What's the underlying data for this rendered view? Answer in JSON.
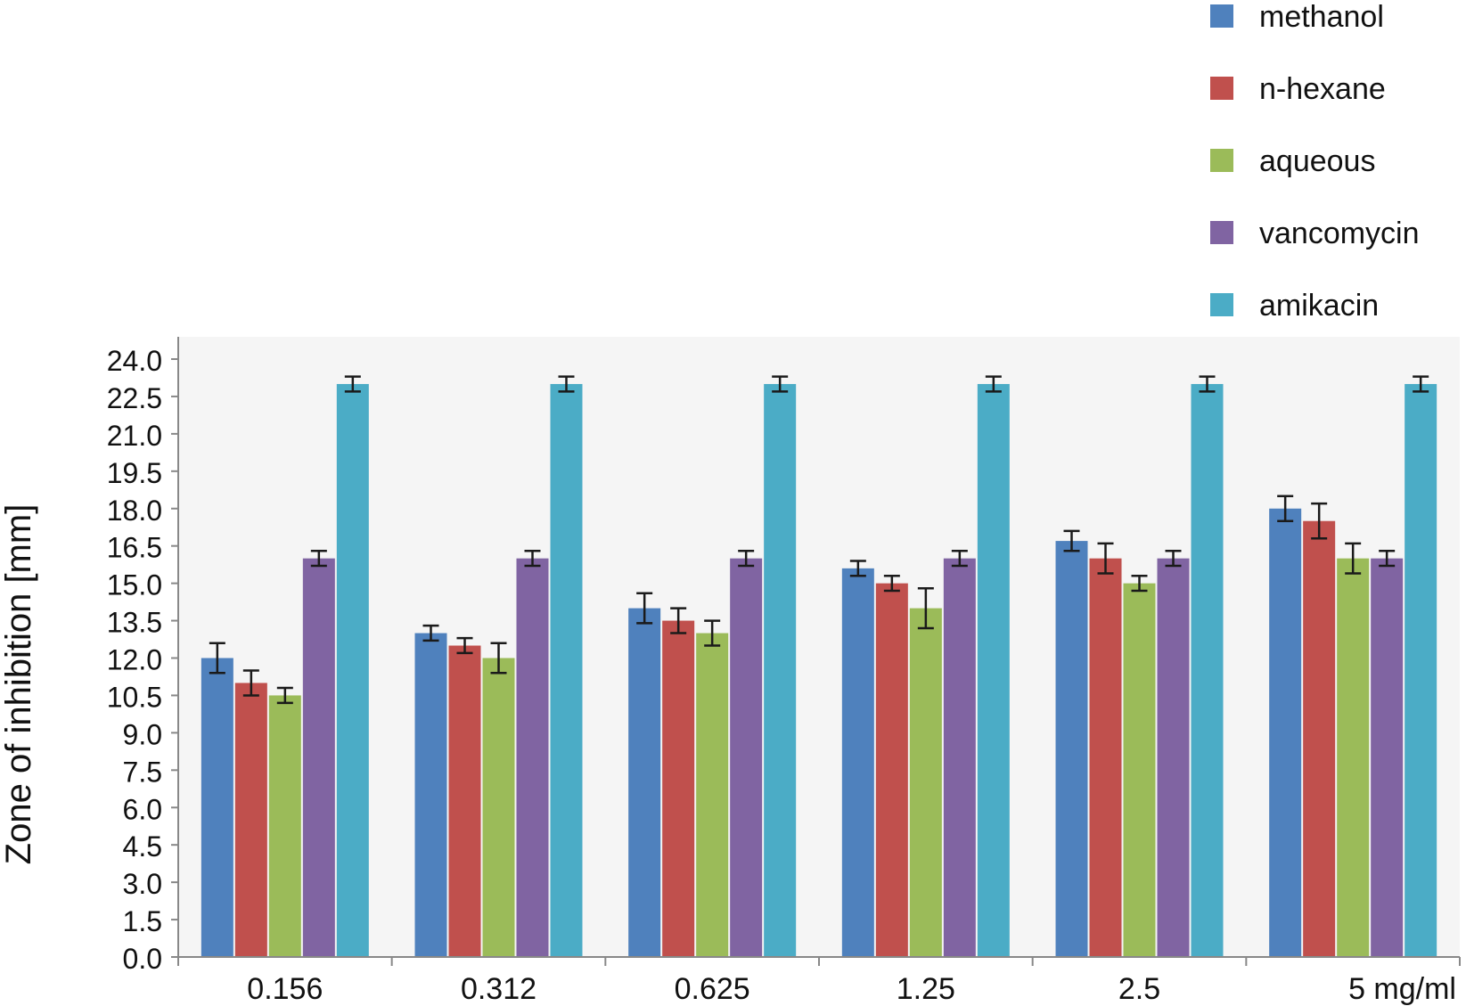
{
  "chart_data": {
    "type": "bar",
    "title": "",
    "xlabel": "",
    "ylabel": "Zone of inhibition [mm]",
    "ylim": [
      0,
      24
    ],
    "yticks": [
      "0.0",
      "1.5",
      "3.0",
      "4.5",
      "6.0",
      "7.5",
      "9.0",
      "10.5",
      "12.0",
      "13.5",
      "15.0",
      "16.5",
      "18.0",
      "19.5",
      "21.0",
      "22.5",
      "24.0"
    ],
    "categories": [
      "0.156",
      "0.312",
      "0.625",
      "1.25",
      "2.5",
      "5 mg/ml"
    ],
    "legend_position": "top-right",
    "grid": false,
    "error_bars": true,
    "series": [
      {
        "name": "methanol",
        "color": "#4F81BD",
        "values": [
          12.0,
          13.0,
          14.0,
          15.6,
          16.7,
          18.0
        ],
        "errors": [
          0.6,
          0.3,
          0.6,
          0.3,
          0.4,
          0.5
        ]
      },
      {
        "name": "n-hexane",
        "color": "#C0504D",
        "values": [
          11.0,
          12.5,
          13.5,
          15.0,
          16.0,
          17.5
        ],
        "errors": [
          0.5,
          0.3,
          0.5,
          0.3,
          0.6,
          0.7
        ]
      },
      {
        "name": "aqueous",
        "color": "#9BBB59",
        "values": [
          10.5,
          12.0,
          13.0,
          14.0,
          15.0,
          16.0
        ],
        "errors": [
          0.3,
          0.6,
          0.5,
          0.8,
          0.3,
          0.6
        ]
      },
      {
        "name": "vancomycin",
        "color": "#8064A2",
        "values": [
          16.0,
          16.0,
          16.0,
          16.0,
          16.0,
          16.0
        ],
        "errors": [
          0.3,
          0.3,
          0.3,
          0.3,
          0.3,
          0.3
        ]
      },
      {
        "name": "amikacin",
        "color": "#4BACC6",
        "values": [
          23.0,
          23.0,
          23.0,
          23.0,
          23.0,
          23.0
        ],
        "errors": [
          0.3,
          0.3,
          0.3,
          0.3,
          0.3,
          0.3
        ]
      }
    ]
  }
}
